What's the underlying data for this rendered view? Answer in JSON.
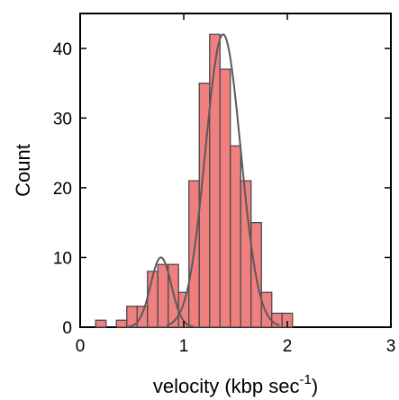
{
  "chart_data": {
    "type": "bar",
    "title": "",
    "xlabel": "velocity (kbp sec",
    "xlabel_superscript": "-1",
    "xlabel_close": ")",
    "ylabel": "Count",
    "xlim": [
      0,
      3
    ],
    "ylim": [
      0,
      45
    ],
    "x_ticks": [
      "0",
      "1",
      "2",
      "3"
    ],
    "y_ticks": [
      "0",
      "10",
      "20",
      "30",
      "40"
    ],
    "grid": false,
    "bin_width": 0.1,
    "bins": [
      {
        "start": 0.15,
        "value": 1
      },
      {
        "start": 0.25,
        "value": 0
      },
      {
        "start": 0.35,
        "value": 1
      },
      {
        "start": 0.45,
        "value": 3
      },
      {
        "start": 0.55,
        "value": 3
      },
      {
        "start": 0.65,
        "value": 8
      },
      {
        "start": 0.75,
        "value": 9
      },
      {
        "start": 0.85,
        "value": 9
      },
      {
        "start": 0.95,
        "value": 5
      },
      {
        "start": 1.05,
        "value": 21
      },
      {
        "start": 1.15,
        "value": 35
      },
      {
        "start": 1.25,
        "value": 42
      },
      {
        "start": 1.35,
        "value": 37
      },
      {
        "start": 1.45,
        "value": 26
      },
      {
        "start": 1.55,
        "value": 21
      },
      {
        "start": 1.65,
        "value": 15
      },
      {
        "start": 1.75,
        "value": 5
      },
      {
        "start": 1.85,
        "value": 2
      },
      {
        "start": 1.95,
        "value": 2
      }
    ],
    "fits": [
      {
        "amplitude": 10,
        "mean": 0.78,
        "sigma": 0.1
      },
      {
        "amplitude": 42,
        "mean": 1.38,
        "sigma": 0.17
      }
    ],
    "colors": {
      "bar_fill": "#f08080",
      "bar_stroke": "#4a4a4a",
      "curve": "#5a5a5a",
      "axis": "#000000"
    }
  }
}
